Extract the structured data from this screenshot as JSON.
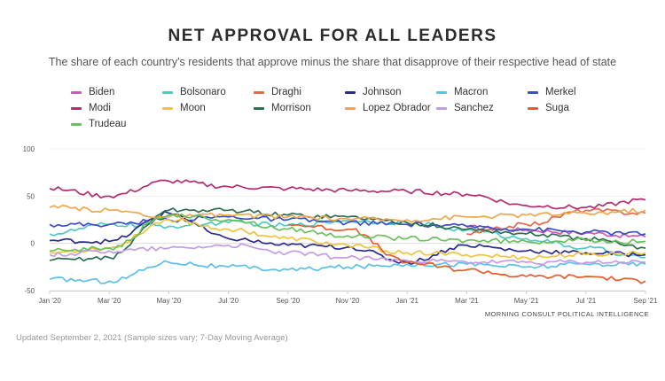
{
  "chart_data": {
    "type": "line",
    "title": "NET APPROVAL FOR ALL LEADERS",
    "subtitle": "The share of each country's residents that approve minus the share that disapprove of their respective head of state",
    "xlabel": "",
    "ylabel": "",
    "ylim": [
      -50,
      100
    ],
    "yticks": [
      100,
      50,
      0,
      -50
    ],
    "xticks": [
      "Jan '20",
      "Mar '20",
      "May '20",
      "Jul '20",
      "Sep '20",
      "Nov '20",
      "Jan '21",
      "Mar '21",
      "May '21",
      "Jul '21",
      "Sep '21"
    ],
    "grid": true,
    "legend_position": "top",
    "series": [
      {
        "name": "Biden",
        "color": "#d454b4",
        "values": [
          null,
          null,
          null,
          null,
          null,
          null,
          null,
          17,
          14,
          11,
          7
        ]
      },
      {
        "name": "Bolsonaro",
        "color": "#4ec9c3",
        "values": [
          10,
          20,
          18,
          22,
          19,
          24,
          22,
          14,
          5,
          -5,
          -15
        ]
      },
      {
        "name": "Draghi",
        "color": "#e2694f",
        "values": [
          null,
          null,
          null,
          null,
          null,
          null,
          null,
          10,
          20,
          35,
          32
        ]
      },
      {
        "name": "Johnson",
        "color": "#2a2a8c",
        "values": [
          3,
          2,
          32,
          5,
          -2,
          -4,
          -20,
          -2,
          -8,
          -10,
          -12
        ]
      },
      {
        "name": "Macron",
        "color": "#5bc0e8",
        "values": [
          -38,
          -40,
          -20,
          -25,
          -28,
          -25,
          -22,
          -22,
          -25,
          -22,
          -22
        ]
      },
      {
        "name": "Merkel",
        "color": "#3b4fc4",
        "values": [
          20,
          20,
          25,
          28,
          25,
          22,
          20,
          18,
          15,
          12,
          10
        ]
      },
      {
        "name": "Modi",
        "color": "#b52d6e",
        "values": [
          58,
          50,
          66,
          60,
          58,
          56,
          55,
          52,
          40,
          38,
          46
        ]
      },
      {
        "name": "Moon",
        "color": "#f2c33c",
        "values": [
          -10,
          -5,
          25,
          15,
          5,
          -2,
          -10,
          -12,
          -15,
          -12,
          -10
        ]
      },
      {
        "name": "Morrison",
        "color": "#2d6e4f",
        "values": [
          -18,
          -15,
          35,
          35,
          30,
          28,
          22,
          15,
          10,
          5,
          -5
        ]
      },
      {
        "name": "Lopez Obrador",
        "color": "#f0a64a",
        "values": [
          38,
          35,
          28,
          30,
          28,
          26,
          25,
          28,
          30,
          32,
          35
        ]
      },
      {
        "name": "Sanchez",
        "color": "#c59be3",
        "values": [
          -12,
          -8,
          -5,
          -2,
          -10,
          -15,
          -18,
          -20,
          -20,
          -20,
          -20
        ]
      },
      {
        "name": "Suga",
        "color": "#e65c2a",
        "values": [
          null,
          null,
          null,
          null,
          20,
          15,
          -20,
          -28,
          -35,
          -35,
          -40
        ]
      },
      {
        "name": "Trudeau",
        "color": "#6abf5e",
        "values": [
          -8,
          -5,
          30,
          25,
          15,
          8,
          5,
          3,
          2,
          3,
          2
        ]
      }
    ]
  },
  "source_label": "MORNING CONSULT POLITICAL INTELLIGENCE",
  "footnote": "Updated September 2, 2021 (Sample sizes vary; 7-Day Moving Average)"
}
